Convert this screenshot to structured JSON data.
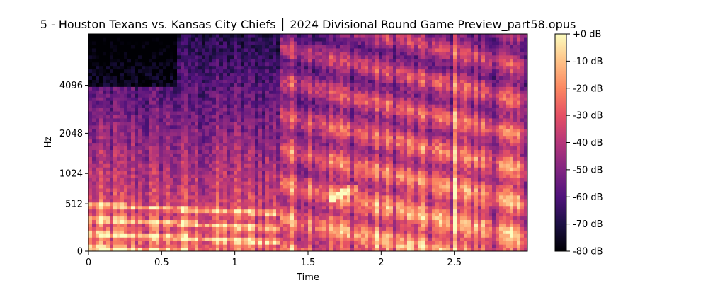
{
  "chart_data": {
    "type": "heatmap",
    "title": "5 - Houston Texans vs. Kansas City Chiefs │ 2024 Divisional Round Game Preview_part58.opus",
    "xlabel": "Time",
    "ylabel": "Hz",
    "x_ticks": [
      {
        "value": 0,
        "label": "0"
      },
      {
        "value": 0.5,
        "label": "0.5"
      },
      {
        "value": 1,
        "label": "1"
      },
      {
        "value": 1.5,
        "label": "1.5"
      },
      {
        "value": 2,
        "label": "2"
      },
      {
        "value": 2.5,
        "label": "2.5"
      }
    ],
    "y_ticks": [
      {
        "value": 0,
        "label": "0"
      },
      {
        "value": 512,
        "label": "512"
      },
      {
        "value": 1024,
        "label": "1024"
      },
      {
        "value": 2048,
        "label": "2048"
      },
      {
        "value": 4096,
        "label": "4096"
      }
    ],
    "xlim": [
      0,
      3.0
    ],
    "ylim": [
      0,
      8000
    ],
    "y_scale": "mel",
    "colormap": "magma",
    "colorbar": {
      "range_db": [
        -80,
        0
      ],
      "ticks": [
        {
          "value": 0,
          "label": "+0 dB"
        },
        {
          "value": -10,
          "label": "-10 dB"
        },
        {
          "value": -20,
          "label": "-20 dB"
        },
        {
          "value": -30,
          "label": "-30 dB"
        },
        {
          "value": -40,
          "label": "-40 dB"
        },
        {
          "value": -50,
          "label": "-50 dB"
        },
        {
          "value": -60,
          "label": "-60 dB"
        },
        {
          "value": -70,
          "label": "-70 dB"
        },
        {
          "value": -80,
          "label": "-80 dB"
        }
      ]
    },
    "grid": false,
    "legend": "none"
  }
}
